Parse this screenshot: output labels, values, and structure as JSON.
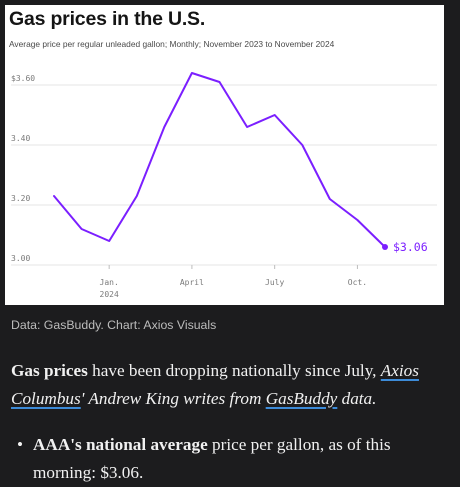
{
  "chart_data": {
    "type": "line",
    "title": "Gas prices in the U.S.",
    "subtitle": "Average price per regular unleaded gallon; Monthly; November 2023 to November 2024",
    "x": [
      "2023-11",
      "2023-12",
      "2024-01",
      "2024-02",
      "2024-03",
      "2024-04",
      "2024-05",
      "2024-06",
      "2024-07",
      "2024-08",
      "2024-09",
      "2024-10",
      "2024-11"
    ],
    "series": [
      {
        "values": [
          3.23,
          3.12,
          3.08,
          3.23,
          3.46,
          3.64,
          3.61,
          3.46,
          3.5,
          3.4,
          3.22,
          3.15,
          3.06
        ]
      }
    ],
    "ylim": [
      3.0,
      3.6
    ],
    "yticks": [
      "$3.60",
      "3.40",
      "3.20",
      "3.00"
    ],
    "xticks": [
      {
        "label": "Jan.",
        "sub": "2024",
        "x": "2024-01"
      },
      {
        "label": "April",
        "sub": "",
        "x": "2024-04"
      },
      {
        "label": "July",
        "sub": "",
        "x": "2024-07"
      },
      {
        "label": "Oct.",
        "sub": "",
        "x": "2024-10"
      }
    ],
    "end_label": "$3.06",
    "grid": true,
    "line_color": "#7b1fff"
  },
  "source": "Data: GasBuddy. Chart: Axios Visuals",
  "article": {
    "p1_bold": "Gas prices",
    "p1_text1": " have been dropping nationally since July, ",
    "p1_link1": "Axios",
    "p1_link1b": "Columbus",
    "p1_text2": "' Andrew King writes from ",
    "p1_link2": "GasBuddy",
    "p1_text3": " data.",
    "bullet_bold": "AAA's national average",
    "bullet_text1": " price per gallon, as of this",
    "bullet_text2": "morning: $3.06."
  }
}
